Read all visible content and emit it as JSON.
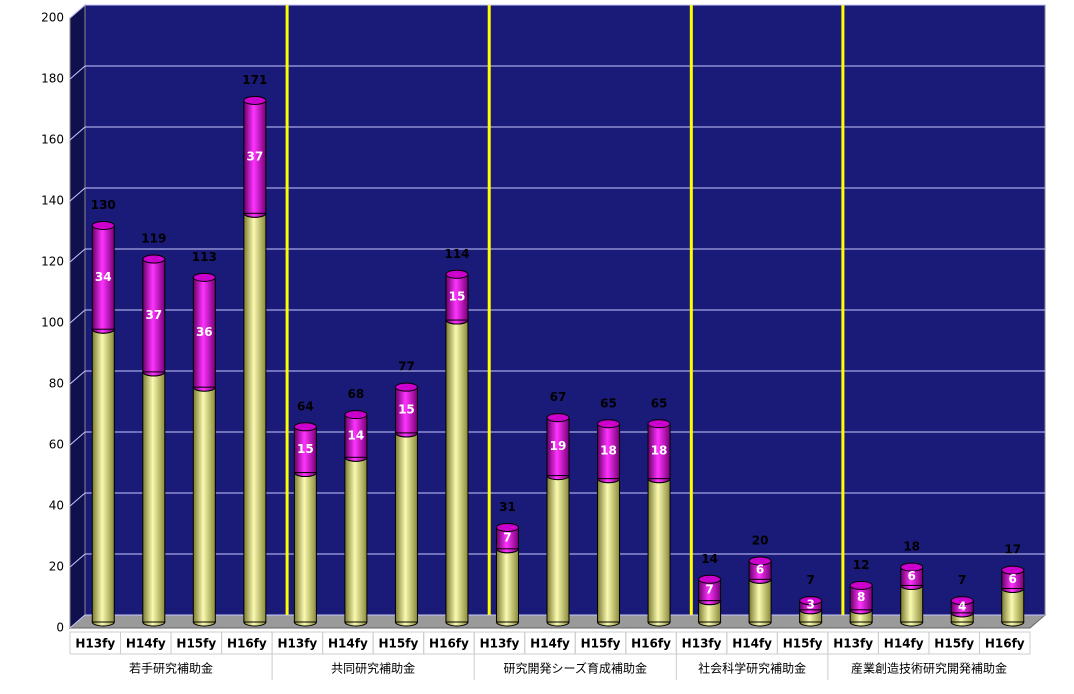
{
  "chart_data": {
    "type": "bar",
    "stacked": true,
    "groups": [
      {
        "label": "若手研究補助金",
        "categories": [
          "H13fy",
          "H14fy",
          "H15fy",
          "H16fy"
        ]
      },
      {
        "label": "共同研究補助金",
        "categories": [
          "H13fy",
          "H14fy",
          "H15fy",
          "H16fy"
        ]
      },
      {
        "label": "研究開発シーズ育成補助金",
        "categories": [
          "H13fy",
          "H14fy",
          "H15fy",
          "H16fy"
        ]
      },
      {
        "label": "社会科学研究補助金",
        "categories": [
          "H13fy",
          "H14fy",
          "H15fy"
        ]
      },
      {
        "label": "産業創造技術研究開発補助金",
        "categories": [
          "H13fy",
          "H14fy",
          "H15fy",
          "H16fy"
        ]
      }
    ],
    "series": [
      {
        "color": "#e6e68c",
        "values": [
          96,
          82,
          77,
          134,
          49,
          54,
          62,
          99,
          24,
          48,
          47,
          47,
          7,
          14,
          4,
          4,
          12,
          3,
          11
        ]
      },
      {
        "color": "#cc00cc",
        "values": [
          34,
          37,
          36,
          37,
          15,
          14,
          15,
          15,
          7,
          19,
          18,
          18,
          7,
          6,
          3,
          8,
          6,
          4,
          6
        ],
        "labels_shown": true
      }
    ],
    "totals": [
      130,
      119,
      113,
      171,
      64,
      68,
      77,
      114,
      31,
      67,
      65,
      65,
      14,
      20,
      7,
      12,
      18,
      7,
      17
    ],
    "ylim": [
      0,
      200
    ],
    "yticks": [
      0,
      20,
      40,
      60,
      80,
      100,
      120,
      140,
      160,
      180,
      200
    ],
    "grid": true,
    "separator_color": "#ffff00"
  }
}
